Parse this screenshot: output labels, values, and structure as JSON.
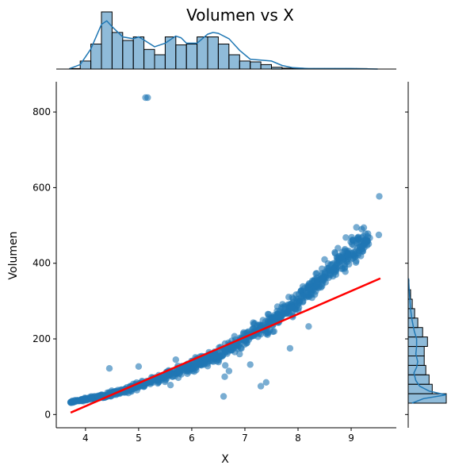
{
  "chart_data": {
    "type": "scatter",
    "title": "Volumen vs X",
    "xlabel": "X",
    "ylabel": "Volumen",
    "xlim": [
      3.45,
      9.85
    ],
    "ylim": [
      -35,
      880
    ],
    "xticks": [
      4,
      5,
      6,
      7,
      8,
      9
    ],
    "yticks": [
      0,
      200,
      400,
      600,
      800
    ],
    "point_color": "#1f77b4",
    "regression_color": "#ff0000",
    "regression_line": {
      "x": [
        3.72,
        9.55
      ],
      "y": [
        5,
        360
      ]
    },
    "trend_curve": {
      "x": [
        3.72,
        4.0,
        4.5,
        5.0,
        5.5,
        6.0,
        6.5,
        7.0,
        7.5,
        8.0,
        8.5,
        9.0,
        9.35
      ],
      "y": [
        33,
        40,
        55,
        75,
        100,
        128,
        160,
        200,
        245,
        300,
        365,
        430,
        470
      ]
    },
    "outliers": [
      {
        "x": 5.13,
        "y": 838
      },
      {
        "x": 5.17,
        "y": 838
      },
      {
        "x": 9.53,
        "y": 577
      },
      {
        "x": 9.52,
        "y": 475
      },
      {
        "x": 9.2,
        "y": 490
      },
      {
        "x": 9.1,
        "y": 495
      },
      {
        "x": 9.35,
        "y": 467
      },
      {
        "x": 8.9,
        "y": 468
      },
      {
        "x": 9.3,
        "y": 447
      },
      {
        "x": 9.05,
        "y": 425
      },
      {
        "x": 8.75,
        "y": 440
      },
      {
        "x": 8.5,
        "y": 410
      },
      {
        "x": 4.45,
        "y": 122
      },
      {
        "x": 5.0,
        "y": 127
      },
      {
        "x": 6.6,
        "y": 48
      },
      {
        "x": 6.62,
        "y": 100
      },
      {
        "x": 6.63,
        "y": 130
      },
      {
        "x": 6.7,
        "y": 115
      },
      {
        "x": 7.1,
        "y": 132
      },
      {
        "x": 7.3,
        "y": 75
      },
      {
        "x": 7.4,
        "y": 85
      },
      {
        "x": 7.85,
        "y": 175
      },
      {
        "x": 8.2,
        "y": 233
      },
      {
        "x": 7.55,
        "y": 220
      },
      {
        "x": 7.9,
        "y": 258
      },
      {
        "x": 6.4,
        "y": 160
      },
      {
        "x": 5.7,
        "y": 145
      },
      {
        "x": 5.6,
        "y": 78
      },
      {
        "x": 6.9,
        "y": 160
      }
    ],
    "x_histogram": {
      "bin_edges": [
        3.7,
        3.9,
        4.1,
        4.3,
        4.5,
        4.7,
        4.9,
        5.1,
        5.3,
        5.5,
        5.7,
        5.9,
        6.1,
        6.3,
        6.5,
        6.7,
        6.9,
        7.1,
        7.3,
        7.5,
        7.7,
        7.9,
        8.1,
        8.3,
        8.5,
        8.7,
        8.9,
        9.1,
        9.3,
        9.5
      ],
      "counts": [
        1,
        18,
        56,
        128,
        82,
        64,
        72,
        44,
        32,
        72,
        54,
        56,
        72,
        72,
        56,
        32,
        18,
        16,
        10,
        4,
        2,
        2,
        1,
        1,
        1,
        1,
        1,
        1,
        0
      ],
      "kde_x": [
        3.7,
        3.9,
        4.1,
        4.3,
        4.4,
        4.5,
        4.7,
        4.9,
        5.0,
        5.1,
        5.3,
        5.5,
        5.7,
        5.8,
        5.9,
        6.1,
        6.3,
        6.4,
        6.5,
        6.7,
        6.9,
        7.1,
        7.3,
        7.5,
        7.7,
        7.9,
        8.2,
        8.6,
        9.0,
        9.5
      ],
      "kde_y": [
        1,
        10,
        45,
        100,
        108,
        95,
        72,
        68,
        72,
        65,
        50,
        58,
        74,
        70,
        58,
        58,
        78,
        82,
        80,
        68,
        42,
        22,
        20,
        18,
        8,
        3,
        1,
        1,
        1,
        0
      ]
    },
    "y_histogram": {
      "bin_edges": [
        30,
        55,
        80,
        105,
        130,
        155,
        180,
        205,
        230,
        255,
        280,
        305,
        330,
        355
      ],
      "counts": [
        95,
        60,
        52,
        44,
        40,
        40,
        48,
        36,
        24,
        16,
        10,
        6,
        2
      ],
      "kde_y": [
        30,
        42,
        52,
        62,
        75,
        90,
        110,
        125,
        140,
        160,
        180,
        200,
        220,
        250,
        280,
        310,
        340,
        360
      ],
      "kde_x": [
        10,
        40,
        100,
        55,
        30,
        20,
        15,
        22,
        25,
        20,
        22,
        22,
        16,
        10,
        6,
        4,
        2,
        1
      ]
    }
  }
}
